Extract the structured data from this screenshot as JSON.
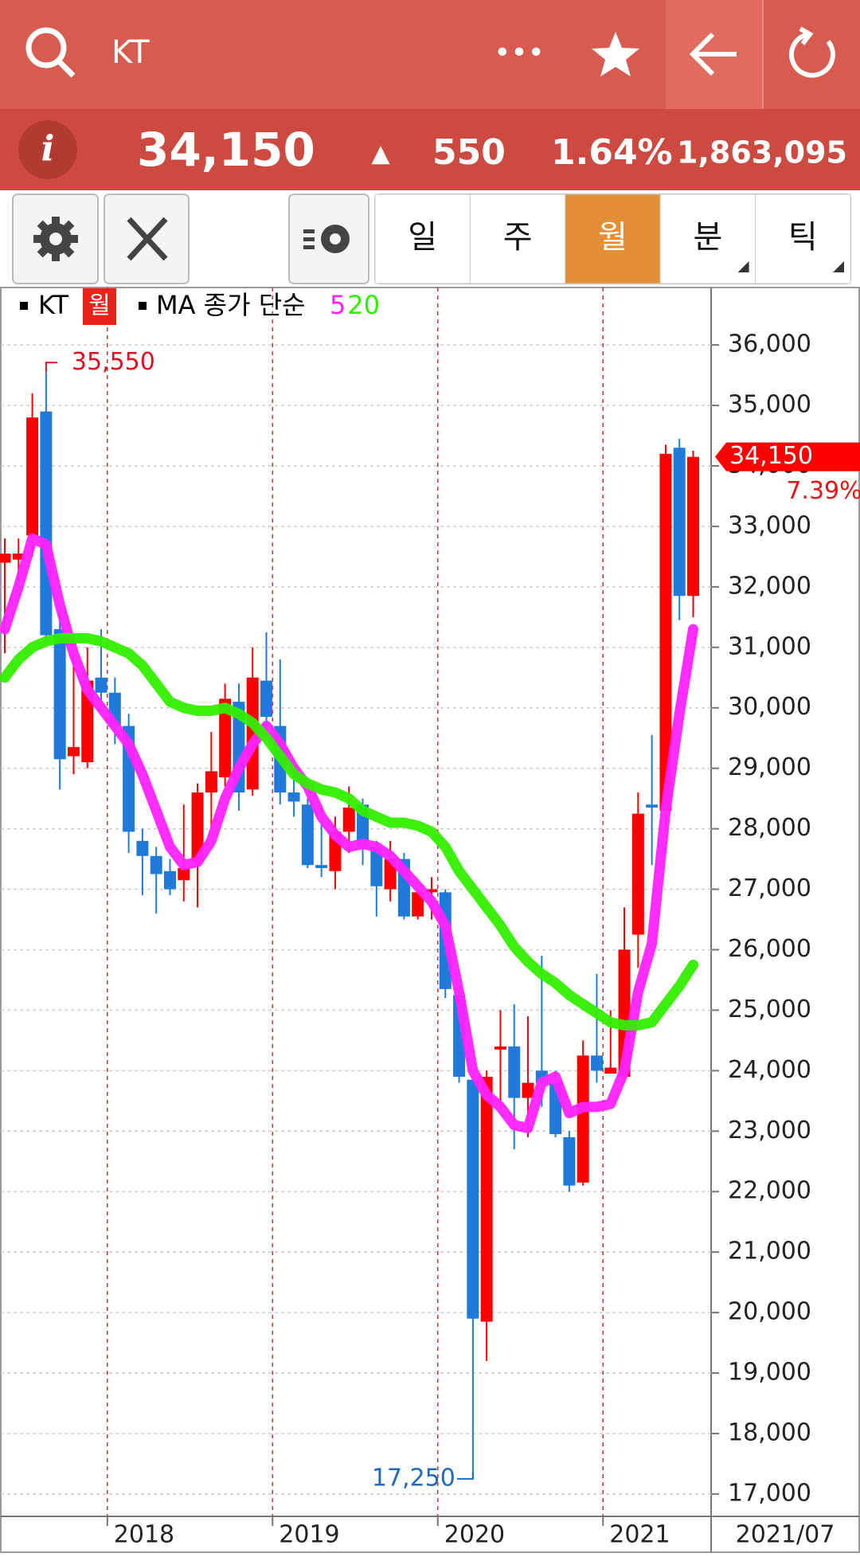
{
  "header": {
    "title": "KT",
    "more": "•••",
    "price": "34,150",
    "arrow": "▲",
    "change": "550",
    "change_pct": "1.64%",
    "volume": "1,863,095",
    "info": "i"
  },
  "toolbar": {
    "tabs": [
      "일",
      "주",
      "월",
      "분",
      "틱"
    ],
    "active_tab": 2
  },
  "legend": {
    "symbol": "KT",
    "period": "월",
    "ma_label": "MA 종가 단순"
  },
  "chart_data": {
    "type": "candlestick",
    "categories": [
      null,
      null,
      null,
      null,
      null,
      null,
      null,
      null,
      "2018",
      null,
      null,
      null,
      null,
      null,
      null,
      null,
      null,
      null,
      null,
      null,
      "2019",
      null,
      null,
      null,
      null,
      null,
      null,
      null,
      null,
      null,
      null,
      null,
      "2020",
      null,
      null,
      null,
      null,
      null,
      null,
      null,
      null,
      null,
      null,
      null,
      "2021",
      null,
      null,
      null,
      null,
      null,
      null
    ],
    "ohlc": {
      "open": [
        32400,
        32450,
        32850,
        34900,
        31300,
        29200,
        29100,
        30500,
        30250,
        29700,
        27800,
        27550,
        27300,
        27150,
        27450,
        28600,
        28850,
        30100,
        28650,
        30450,
        29700,
        28600,
        28400,
        27400,
        27300,
        27950,
        28400,
        27700,
        27000,
        27500,
        26550,
        26950,
        26950,
        25250,
        23850,
        19850,
        24350,
        24400,
        23550,
        24000,
        23800,
        22900,
        22150,
        24250,
        23950,
        23900,
        26250,
        28400,
        28300,
        34300,
        31850
      ],
      "high": [
        32800,
        32800,
        35200,
        35550,
        31600,
        30900,
        31000,
        31300,
        30500,
        29900,
        28000,
        27700,
        27500,
        28400,
        28750,
        29600,
        30400,
        30400,
        31000,
        31250,
        30800,
        29000,
        28500,
        28400,
        28200,
        28700,
        28500,
        27800,
        27800,
        27600,
        27000,
        27200,
        27000,
        25400,
        24000,
        24000,
        25000,
        25100,
        24900,
        25900,
        24000,
        23000,
        24500,
        25600,
        25000,
        26700,
        28600,
        29550,
        34350,
        34450,
        34250
      ],
      "low": [
        30900,
        32100,
        32500,
        31100,
        28650,
        28900,
        29000,
        30000,
        29400,
        27600,
        26900,
        26600,
        26900,
        26800,
        26700,
        28000,
        28700,
        28300,
        28550,
        29500,
        28400,
        28200,
        27350,
        27200,
        27000,
        27600,
        27400,
        26550,
        26800,
        26500,
        26500,
        26500,
        25200,
        23800,
        17250,
        19200,
        23400,
        22700,
        22900,
        23400,
        22900,
        22000,
        22100,
        23800,
        23950,
        23800,
        25700,
        27400,
        27950,
        31450,
        31500
      ],
      "close": [
        32550,
        32550,
        34800,
        31200,
        29150,
        29350,
        30450,
        30250,
        29700,
        27950,
        27550,
        27250,
        27000,
        27350,
        28600,
        28950,
        30150,
        28600,
        30500,
        29850,
        28600,
        28450,
        27400,
        27350,
        27950,
        28350,
        27700,
        27050,
        27500,
        26550,
        26950,
        27000,
        25350,
        23900,
        19900,
        23900,
        24400,
        23550,
        23800,
        23800,
        22950,
        22100,
        24250,
        24000,
        24050,
        26000,
        28250,
        28350,
        34200,
        31850,
        34150
      ]
    },
    "up_color": "#ff0000",
    "down_color": "#1f7ad9",
    "series": [
      {
        "name": "5",
        "color": "#ff22ff",
        "values": [
          31300,
          32000,
          32800,
          32700,
          31700,
          30900,
          30300,
          30000,
          29700,
          29400,
          28900,
          28300,
          27700,
          27400,
          27450,
          27800,
          28500,
          29000,
          29400,
          29700,
          29400,
          29000,
          28700,
          28200,
          27900,
          27700,
          27750,
          27700,
          27550,
          27300,
          27050,
          26800,
          26400,
          25300,
          24000,
          23600,
          23400,
          23100,
          23050,
          23800,
          23900,
          23300,
          23400,
          23400,
          23450,
          24000,
          25300,
          26100,
          28300,
          29900,
          31300
        ]
      },
      {
        "name": "20",
        "color": "#33ee00",
        "values": [
          30500,
          30800,
          31000,
          31100,
          31150,
          31150,
          31150,
          31100,
          31000,
          30900,
          30700,
          30400,
          30100,
          30000,
          29950,
          29950,
          30000,
          29900,
          29750,
          29500,
          29200,
          28900,
          28750,
          28650,
          28600,
          28500,
          28300,
          28200,
          28100,
          28100,
          28050,
          27950,
          27700,
          27300,
          27000,
          26700,
          26400,
          26050,
          25800,
          25600,
          25450,
          25250,
          25100,
          24950,
          24800,
          24750,
          24750,
          24800,
          25100,
          25400,
          25750
        ]
      }
    ],
    "ylim": [
      16630,
      36950
    ],
    "yticks": [
      {
        "value": 17000,
        "label": "17,000"
      },
      {
        "value": 18000,
        "label": "18,000"
      },
      {
        "value": 19000,
        "label": "19,000"
      },
      {
        "value": 20000,
        "label": "20,000"
      },
      {
        "value": 21000,
        "label": "21,000"
      },
      {
        "value": 22000,
        "label": "22,000"
      },
      {
        "value": 23000,
        "label": "23,000"
      },
      {
        "value": 24000,
        "label": "24,000"
      },
      {
        "value": 25000,
        "label": "25,000"
      },
      {
        "value": 26000,
        "label": "26,000"
      },
      {
        "value": 27000,
        "label": "27,000"
      },
      {
        "value": 28000,
        "label": "28,000"
      },
      {
        "value": 29000,
        "label": "29,000"
      },
      {
        "value": 30000,
        "label": "30,000"
      },
      {
        "value": 31000,
        "label": "31,000"
      },
      {
        "value": 32000,
        "label": "32,000"
      },
      {
        "value": 33000,
        "label": "33,000"
      },
      {
        "value": 34000,
        "label": "34,000"
      },
      {
        "value": 35000,
        "label": "35,000"
      },
      {
        "value": 36000,
        "label": "36,000"
      }
    ],
    "grid": true,
    "max_label": {
      "value": 35550,
      "label": "35,550"
    },
    "min_label": {
      "value": 17250,
      "label": "17,250"
    },
    "price_tag": {
      "value": 34150,
      "label": "34,150"
    },
    "price_tag_change": "7.39%",
    "last_date": "2021/07"
  }
}
